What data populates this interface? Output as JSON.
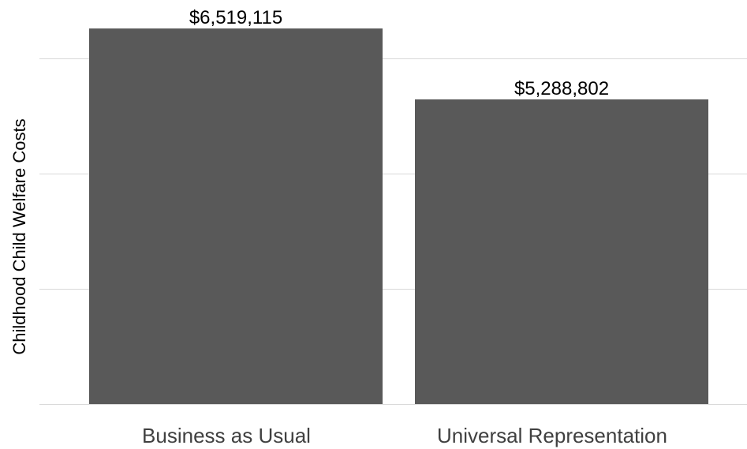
{
  "chart_data": {
    "type": "bar",
    "categories": [
      "Business as Usual",
      "Universal Representation"
    ],
    "values": [
      6519115,
      5288802
    ],
    "data_labels": [
      "$6,519,115",
      "$5,288,802"
    ],
    "title": "",
    "xlabel": "",
    "ylabel": "Childhood Child Welfare Costs",
    "ylim": [
      0,
      6000000
    ],
    "ytick_values": [
      0,
      2000000,
      4000000,
      6000000
    ],
    "ytick_labels_shown": false,
    "grid": true,
    "legend": "none",
    "bar_color": "#595959",
    "grid_color": "#d9d9d9"
  }
}
